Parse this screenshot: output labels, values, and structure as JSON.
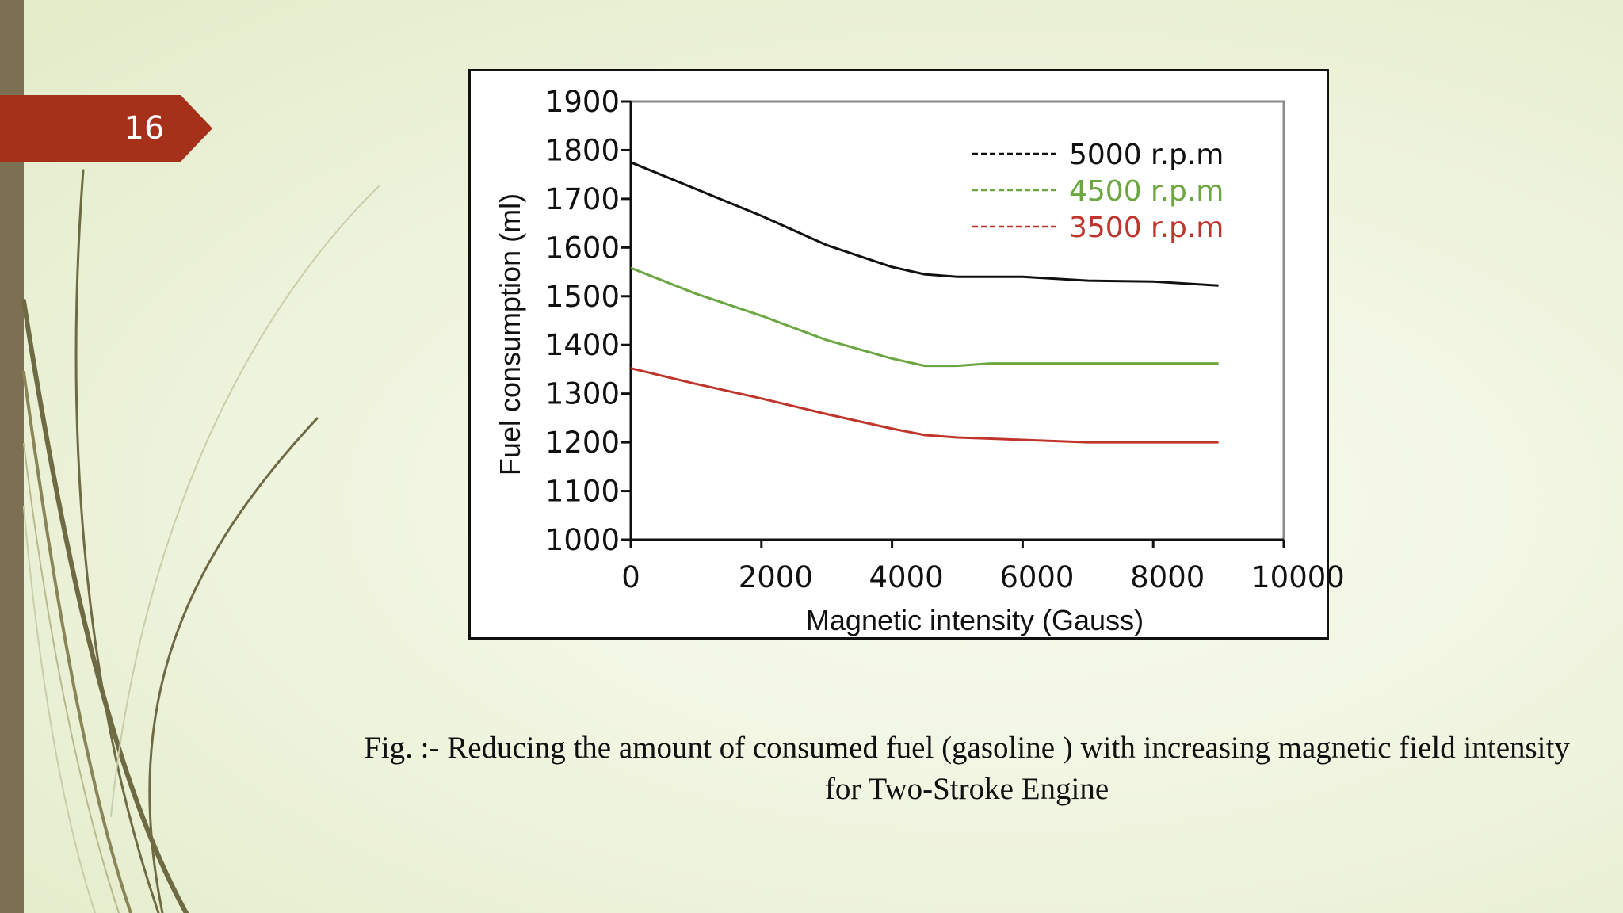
{
  "slide": {
    "page_number": "16",
    "caption": "Fig. :- Reducing the amount of consumed fuel (gasoline )  with increasing magnetic field intensity  for Two-Stroke Engine"
  },
  "colors": {
    "edge": "#7c6f52",
    "badge": "#a5311b",
    "decor_strands": "#6e6a44"
  },
  "chart_data": {
    "type": "line",
    "title": "",
    "xlabel": "Magnetic intensity (Gauss)",
    "ylabel": "Fuel consumption (ml)",
    "xlim": [
      0,
      10000
    ],
    "ylim": [
      1000,
      1900
    ],
    "x_ticks": [
      "0",
      "2000",
      "4000",
      "6000",
      "8000",
      "10000"
    ],
    "y_ticks": [
      "1000",
      "1100",
      "1200",
      "1300",
      "1400",
      "1500",
      "1600",
      "1700",
      "1800",
      "1900"
    ],
    "legend_position": "top-right",
    "grid": false,
    "series": [
      {
        "name": "5000 r.p.m",
        "color": "#111111",
        "points": [
          [
            0,
            1775
          ],
          [
            1000,
            1720
          ],
          [
            2000,
            1665
          ],
          [
            3000,
            1605
          ],
          [
            4000,
            1560
          ],
          [
            4500,
            1545
          ],
          [
            5000,
            1540
          ],
          [
            6000,
            1540
          ],
          [
            7000,
            1532
          ],
          [
            8000,
            1530
          ],
          [
            9000,
            1522
          ]
        ]
      },
      {
        "name": "4500 r.p.m",
        "color": "#6ca640",
        "points": [
          [
            0,
            1558
          ],
          [
            1000,
            1505
          ],
          [
            2000,
            1460
          ],
          [
            3000,
            1410
          ],
          [
            4000,
            1372
          ],
          [
            4500,
            1357
          ],
          [
            5000,
            1357
          ],
          [
            5500,
            1362
          ],
          [
            6000,
            1362
          ],
          [
            7000,
            1362
          ],
          [
            8000,
            1362
          ],
          [
            9000,
            1362
          ]
        ]
      },
      {
        "name": "3500 r.p.m",
        "color": "#c0352b",
        "points": [
          [
            0,
            1352
          ],
          [
            1000,
            1320
          ],
          [
            2000,
            1290
          ],
          [
            3000,
            1258
          ],
          [
            4000,
            1228
          ],
          [
            4500,
            1215
          ],
          [
            5000,
            1210
          ],
          [
            6000,
            1205
          ],
          [
            7000,
            1200
          ],
          [
            8000,
            1200
          ],
          [
            9000,
            1200
          ]
        ]
      }
    ]
  }
}
